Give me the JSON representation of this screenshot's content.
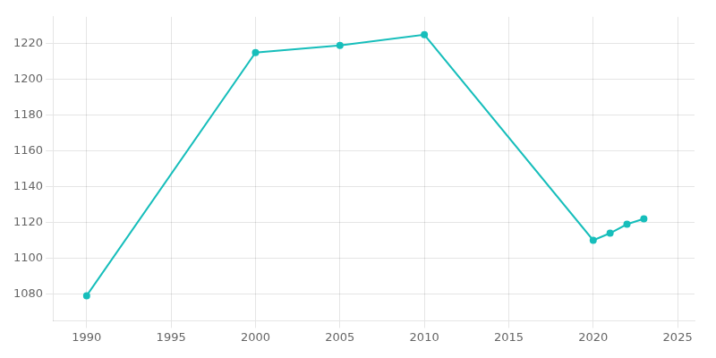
{
  "chart_data": {
    "type": "line",
    "x": [
      1990,
      2000,
      2005,
      2010,
      2020,
      2021,
      2022,
      2023
    ],
    "values": [
      1079,
      1215,
      1219,
      1225,
      1110,
      1114,
      1119,
      1122
    ],
    "color": "#17bebb",
    "marker": "o",
    "xlim": [
      1988,
      2026
    ],
    "ylim": [
      1065,
      1235
    ],
    "xticks": [
      1990,
      1995,
      2000,
      2005,
      2010,
      2015,
      2020,
      2025
    ],
    "yticks": [
      1080,
      1100,
      1120,
      1140,
      1160,
      1180,
      1200,
      1220
    ],
    "grid": true
  }
}
